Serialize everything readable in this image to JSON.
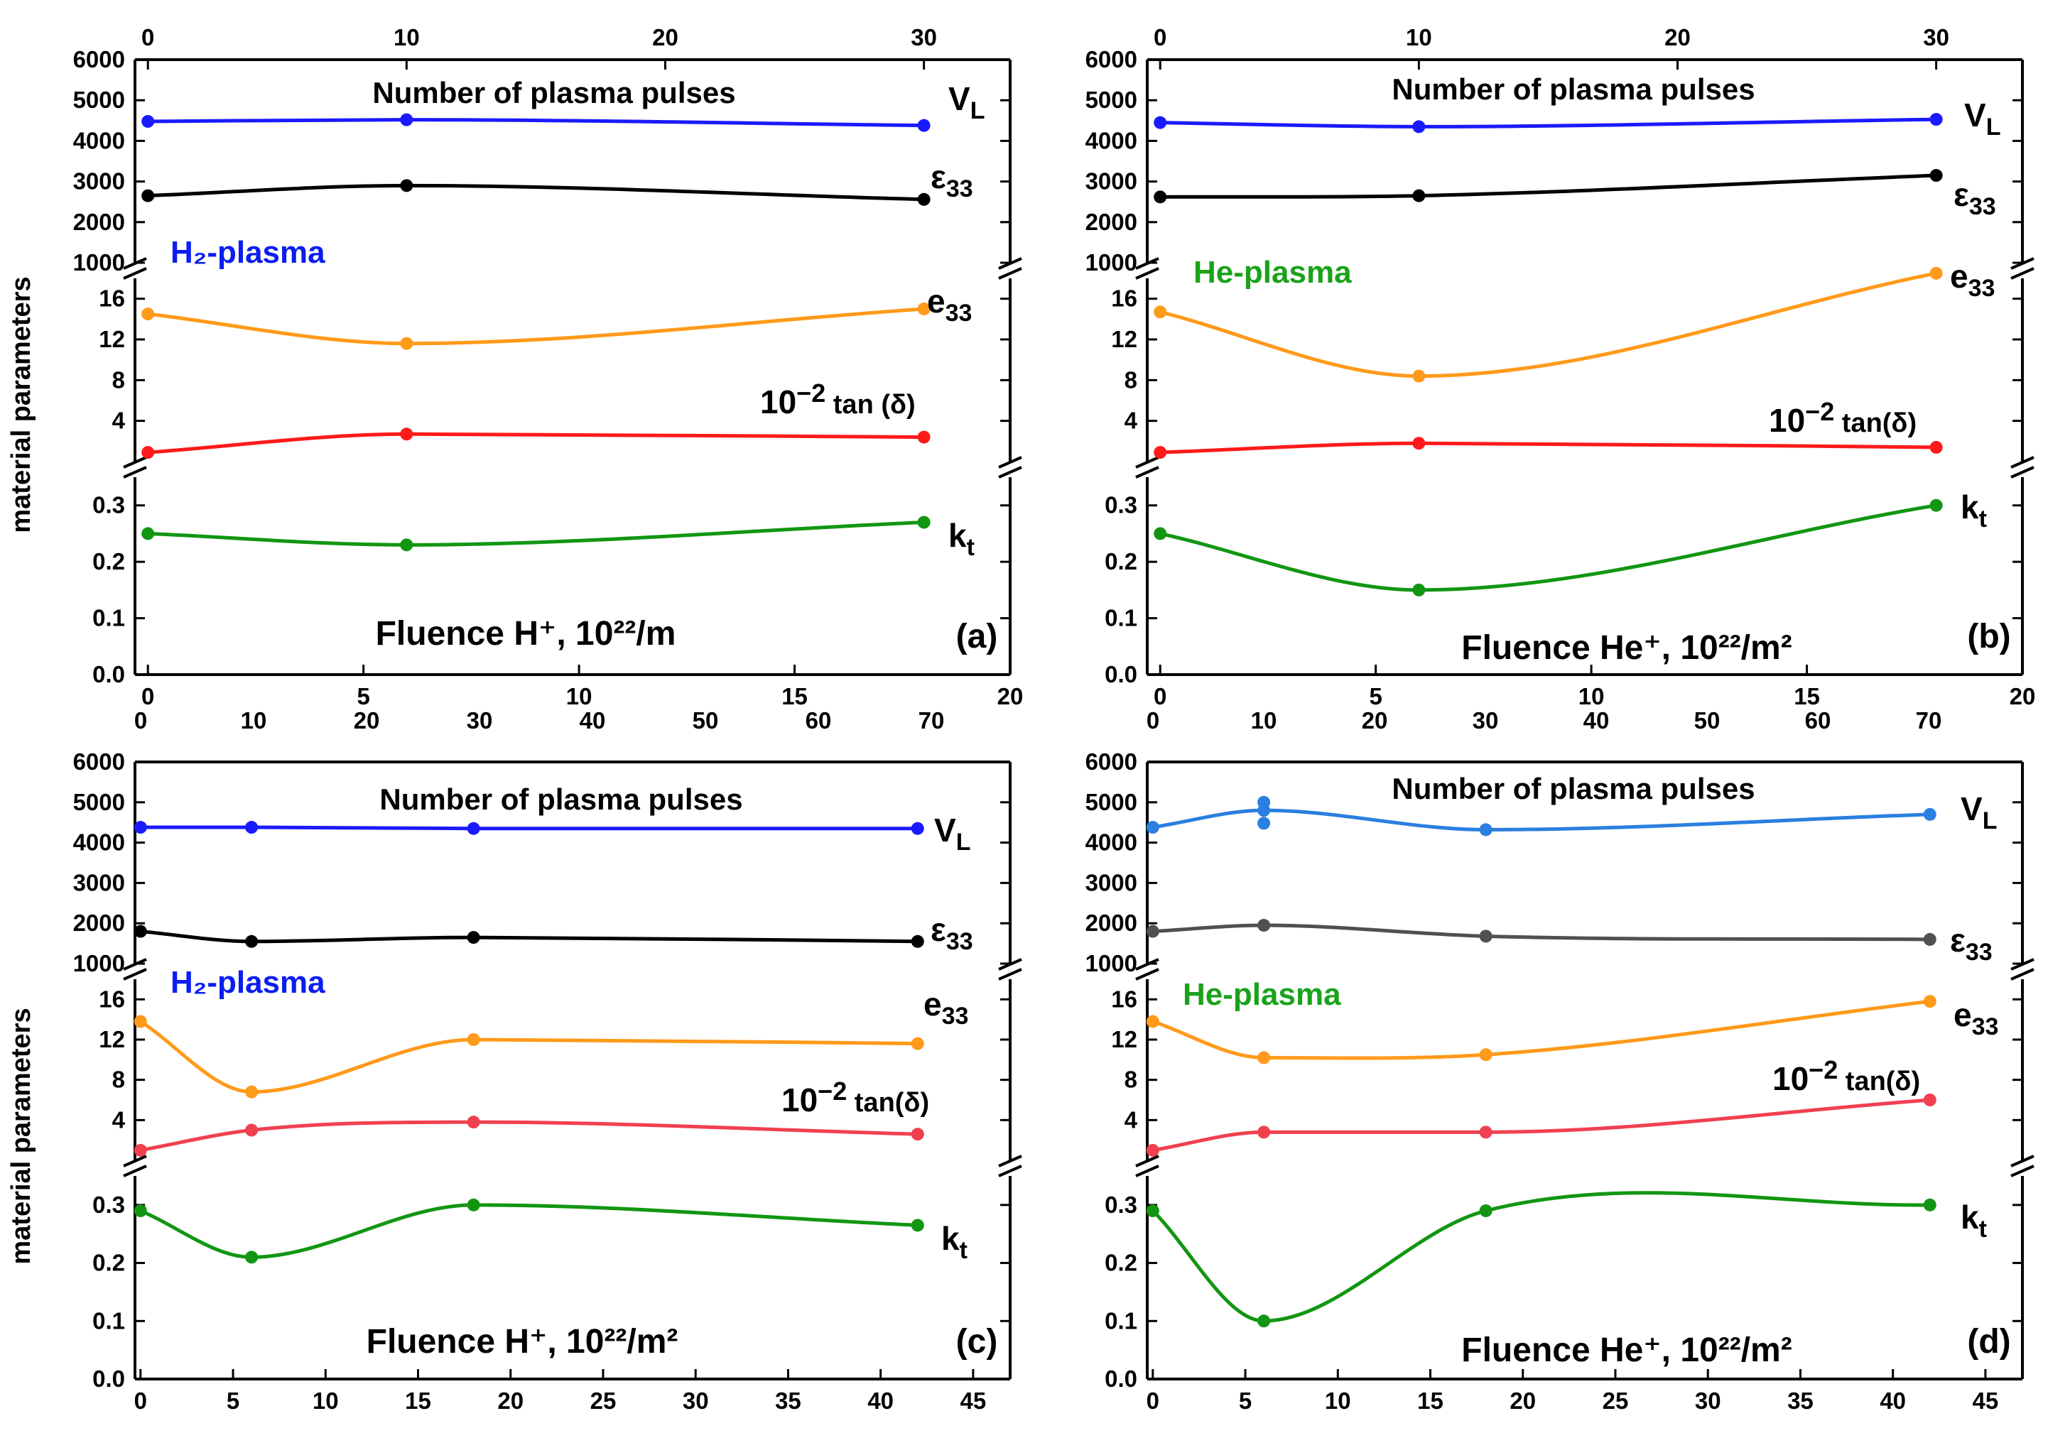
{
  "figure": {
    "y_axis_label": "material parameters"
  },
  "chart_data": [
    {
      "panel": "(a)",
      "type": "line",
      "plasma_label": "H₂-plasma",
      "plasma_color": "#0a1ef0",
      "top_axis_label": "Number of plasma pulses",
      "bottom_axis_label": "Fluence H⁺, 10²²/m",
      "bottom_axis": {
        "range": [
          -0.3,
          20
        ],
        "ticks": [
          0,
          5,
          10,
          15,
          20
        ]
      },
      "top_axis": {
        "scale": 3.0,
        "ticks": [
          0,
          10,
          20,
          30
        ]
      },
      "extra_top_axis": {
        "scale": 3.5,
        "ticks": [
          0,
          10,
          20,
          30,
          40,
          50,
          60,
          70
        ]
      },
      "ylim_high": [
        1000,
        6000
      ],
      "ticks_high": [
        1000,
        2000,
        3000,
        4000,
        5000,
        6000
      ],
      "ylim_mid": [
        0,
        18
      ],
      "ticks_mid": [
        4,
        8,
        12,
        16
      ],
      "ylim_low": [
        0.0,
        0.35
      ],
      "ticks_low": [
        0.0,
        0.1,
        0.2,
        0.3
      ],
      "series": [
        {
          "name": "V_L",
          "label": "V",
          "sub": "L",
          "band": "high",
          "color": "#1a1aff",
          "x": [
            0,
            6,
            18
          ],
          "values": [
            4480,
            4520,
            4380
          ]
        },
        {
          "name": "ε33",
          "label": "ε",
          "sub": "33",
          "band": "high",
          "color": "#000000",
          "x": [
            0,
            6,
            18
          ],
          "values": [
            2650,
            2900,
            2560
          ]
        },
        {
          "name": "e33",
          "label": "e",
          "sub": "33",
          "band": "mid",
          "color": "#ff9a1a",
          "x": [
            0,
            6,
            18
          ],
          "values": [
            14.5,
            11.6,
            15.0
          ]
        },
        {
          "name": "10⁻² tan(δ)",
          "label": "10",
          "sup": "−2",
          "tail": " tan (δ)",
          "band": "mid",
          "color": "#ff1a1a",
          "x": [
            0,
            6,
            18
          ],
          "values": [
            0.9,
            2.7,
            2.4
          ]
        },
        {
          "name": "k_t",
          "label": "k",
          "sub": "t",
          "band": "low",
          "color": "#129612",
          "x": [
            0,
            6,
            18
          ],
          "values": [
            0.25,
            0.23,
            0.27
          ]
        }
      ]
    },
    {
      "panel": "(b)",
      "type": "line",
      "plasma_label": "He-plasma",
      "plasma_color": "#1aa21a",
      "top_axis_label": "Number of plasma pulses",
      "bottom_axis_label": "Fluence He⁺, 10²²/m²",
      "bottom_axis": {
        "range": [
          -0.3,
          20
        ],
        "ticks": [
          0,
          5,
          10,
          15,
          20
        ]
      },
      "top_axis": {
        "scale": 3.0,
        "ticks": [
          0,
          10,
          20,
          30
        ]
      },
      "extra_top_axis": {
        "scale": 3.5,
        "ticks": [
          0,
          10,
          20,
          30,
          40,
          50,
          60,
          70
        ]
      },
      "ylim_high": [
        1000,
        6000
      ],
      "ticks_high": [
        1000,
        2000,
        3000,
        4000,
        5000,
        6000
      ],
      "ylim_mid": [
        0,
        18
      ],
      "ticks_mid": [
        4,
        8,
        12,
        16
      ],
      "ylim_low": [
        0.0,
        0.35
      ],
      "ticks_low": [
        0.0,
        0.1,
        0.2,
        0.3
      ],
      "series": [
        {
          "name": "V_L",
          "label": "V",
          "sub": "L",
          "band": "high",
          "color": "#1a1aff",
          "x": [
            0,
            6,
            18
          ],
          "values": [
            4450,
            4350,
            4530
          ]
        },
        {
          "name": "ε33",
          "label": "ε",
          "sub": "33",
          "band": "high",
          "color": "#000000",
          "x": [
            0,
            6,
            18
          ],
          "values": [
            2620,
            2650,
            3150
          ]
        },
        {
          "name": "e33",
          "label": "e",
          "sub": "33",
          "band": "mid",
          "color": "#ff9a1a",
          "x": [
            0,
            6,
            18
          ],
          "values": [
            14.7,
            8.4,
            18.5
          ]
        },
        {
          "name": "10⁻² tan(δ)",
          "label": "10",
          "sup": "−2",
          "tail": " tan(δ)",
          "band": "mid",
          "color": "#ff1a1a",
          "x": [
            0,
            6,
            18
          ],
          "values": [
            0.9,
            1.8,
            1.4
          ]
        },
        {
          "name": "k_t",
          "label": "k",
          "sub": "t",
          "band": "low",
          "color": "#129612",
          "x": [
            0,
            6,
            18
          ],
          "values": [
            0.25,
            0.15,
            0.3
          ]
        }
      ]
    },
    {
      "panel": "(c)",
      "type": "line",
      "plasma_label": "H₂-plasma",
      "plasma_color": "#0a1ef0",
      "top_axis_label": "Number of plasma pulses",
      "bottom_axis_label": "Fluence H⁺, 10²²/m²",
      "bottom_axis": {
        "range": [
          -0.3,
          47
        ],
        "ticks": [
          0,
          5,
          10,
          15,
          20,
          25,
          30,
          35,
          40,
          45
        ]
      },
      "ylim_high": [
        1000,
        6000
      ],
      "ticks_high": [
        1000,
        2000,
        3000,
        4000,
        5000,
        6000
      ],
      "ylim_mid": [
        0,
        18
      ],
      "ticks_mid": [
        4,
        8,
        12,
        16
      ],
      "ylim_low": [
        0.0,
        0.35
      ],
      "ticks_low": [
        0.0,
        0.1,
        0.2,
        0.3
      ],
      "series": [
        {
          "name": "V_L",
          "label": "V",
          "sub": "L",
          "band": "high",
          "color": "#1a1aff",
          "x": [
            0,
            6,
            18,
            42
          ],
          "values": [
            4380,
            4380,
            4350,
            4350
          ]
        },
        {
          "name": "ε33",
          "label": "ε",
          "sub": "33",
          "band": "high",
          "color": "#000000",
          "x": [
            0,
            6,
            18,
            42
          ],
          "values": [
            1800,
            1550,
            1650,
            1550
          ]
        },
        {
          "name": "e33",
          "label": "e",
          "sub": "33",
          "band": "mid",
          "color": "#ff9a1a",
          "x": [
            0,
            6,
            18,
            42
          ],
          "values": [
            13.8,
            6.8,
            12.0,
            11.6
          ]
        },
        {
          "name": "10⁻² tan(δ)",
          "label": "10",
          "sup": "−2",
          "tail": " tan(δ)",
          "band": "mid",
          "color": "#f04050",
          "x": [
            0,
            6,
            18,
            42
          ],
          "values": [
            1.0,
            3.0,
            3.8,
            2.6
          ]
        },
        {
          "name": "k_t",
          "label": "k",
          "sub": "t",
          "band": "low",
          "color": "#129612",
          "x": [
            0,
            6,
            18,
            42
          ],
          "values": [
            0.29,
            0.21,
            0.3,
            0.265
          ]
        }
      ]
    },
    {
      "panel": "(d)",
      "type": "line",
      "plasma_label": "He-plasma",
      "plasma_color": "#1aa21a",
      "top_axis_label": "Number of plasma pulses",
      "bottom_axis_label": "Fluence He⁺, 10²²/m²",
      "bottom_axis": {
        "range": [
          -0.3,
          47
        ],
        "ticks": [
          0,
          5,
          10,
          15,
          20,
          25,
          30,
          35,
          40,
          45
        ]
      },
      "ylim_high": [
        1000,
        6000
      ],
      "ticks_high": [
        1000,
        2000,
        3000,
        4000,
        5000,
        6000
      ],
      "ylim_mid": [
        0,
        18
      ],
      "ticks_mid": [
        4,
        8,
        12,
        16
      ],
      "ylim_low": [
        0.0,
        0.35
      ],
      "ticks_low": [
        0.0,
        0.1,
        0.2,
        0.3
      ],
      "series": [
        {
          "name": "V_L",
          "label": "V",
          "sub": "L",
          "band": "high",
          "color": "#2a7fe0",
          "x": [
            0,
            6,
            18,
            42
          ],
          "values": [
            4380,
            4800,
            4320,
            4700
          ],
          "extra_points": [
            [
              6,
              5000
            ],
            [
              6,
              4480
            ]
          ]
        },
        {
          "name": "ε33",
          "label": "ε",
          "sub": "33",
          "band": "high",
          "color": "#505050",
          "x": [
            0,
            6,
            18,
            42
          ],
          "values": [
            1800,
            1950,
            1680,
            1600
          ]
        },
        {
          "name": "e33",
          "label": "e",
          "sub": "33",
          "band": "mid",
          "color": "#ff9a1a",
          "x": [
            0,
            6,
            18,
            42
          ],
          "values": [
            13.8,
            10.2,
            10.5,
            15.8
          ]
        },
        {
          "name": "10⁻² tan(δ)",
          "label": "10",
          "sup": "−2",
          "tail": " tan(δ)",
          "band": "mid",
          "color": "#f04050",
          "x": [
            0,
            6,
            18,
            42
          ],
          "values": [
            1.0,
            2.8,
            2.8,
            6.0
          ]
        },
        {
          "name": "k_t",
          "label": "k",
          "sub": "t",
          "band": "low",
          "color": "#129612",
          "x": [
            0,
            6,
            18,
            42
          ],
          "values": [
            0.29,
            0.1,
            0.29,
            0.3
          ]
        }
      ]
    }
  ]
}
